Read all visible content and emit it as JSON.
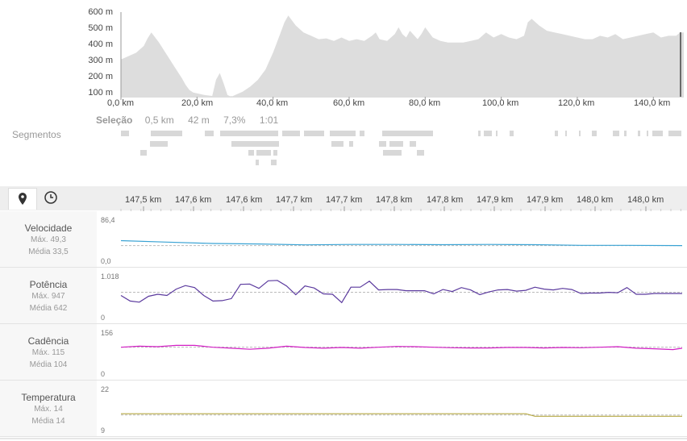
{
  "elevation": {
    "y_ticks": [
      "600 m",
      "500 m",
      "400 m",
      "300 m",
      "200 m",
      "100 m"
    ],
    "x_ticks": [
      "0,0 km",
      "20,0 km",
      "40,0 km",
      "60,0 km",
      "80,0 km",
      "100,0 km",
      "120,0 km",
      "140,0 km"
    ],
    "fill_color": "#dddddd"
  },
  "selection": {
    "label": "Seleção",
    "distance": "0,5 km",
    "elevation": "42 m",
    "grade": "7,3%",
    "time": "1:01"
  },
  "segments_label": "Segmentos",
  "tabs": {
    "map_icon": "map-pin-icon",
    "time_icon": "clock-icon"
  },
  "detail_x_ticks": [
    "147,5 km",
    "147,6 km",
    "147,6 km",
    "147,7 km",
    "147,7 km",
    "147,8 km",
    "147,8 km",
    "147,9 km",
    "147,9 km",
    "148,0 km",
    "148,0 km"
  ],
  "metrics": [
    {
      "title": "Velocidade",
      "max": "Máx. 49,3",
      "avg": "Média 33,5",
      "scale_top": "86,4",
      "scale_bottom": "0,0",
      "color": "#3aa3d4"
    },
    {
      "title": "Potência",
      "max": "Máx. 947",
      "avg": "Média 642",
      "scale_top": "1.018",
      "scale_bottom": "0",
      "color": "#5b3a9e"
    },
    {
      "title": "Cadência",
      "max": "Máx. 115",
      "avg": "Média 104",
      "scale_top": "156",
      "scale_bottom": "0",
      "color": "#d21fc4"
    },
    {
      "title": "Temperatura",
      "max": "Máx. 14",
      "avg": "Média 14",
      "scale_top": "22",
      "scale_bottom": "9",
      "color": "#b5a742"
    }
  ],
  "chart_data": [
    {
      "type": "area",
      "xlabel": "",
      "ylabel": "",
      "x_unit": "km",
      "y_unit": "m",
      "xlim": [
        0,
        148
      ],
      "ylim": [
        100,
        600
      ],
      "x": [
        0,
        2,
        4,
        6,
        7,
        8,
        10,
        12,
        14,
        16,
        17,
        18,
        19,
        20,
        22,
        24,
        25,
        26,
        27,
        28,
        29,
        30,
        32,
        34,
        36,
        38,
        40,
        41,
        42,
        43,
        44,
        46,
        48,
        50,
        52,
        54,
        56,
        58,
        60,
        62,
        64,
        66,
        67,
        68,
        70,
        72,
        73,
        74,
        75,
        76,
        78,
        79,
        80,
        82,
        84,
        86,
        88,
        90,
        92,
        94,
        96,
        98,
        100,
        102,
        104,
        106,
        107,
        108,
        110,
        112,
        114,
        116,
        118,
        120,
        122,
        124,
        126,
        128,
        130,
        132,
        134,
        136,
        138,
        140,
        142,
        144,
        146,
        147,
        148
      ],
      "y": [
        320,
        340,
        360,
        400,
        445,
        480,
        420,
        350,
        280,
        210,
        170,
        140,
        125,
        120,
        110,
        105,
        200,
        240,
        180,
        110,
        100,
        110,
        130,
        160,
        200,
        260,
        360,
        420,
        480,
        540,
        580,
        520,
        480,
        460,
        440,
        445,
        430,
        450,
        430,
        440,
        430,
        460,
        480,
        440,
        430,
        470,
        510,
        470,
        450,
        490,
        440,
        470,
        510,
        450,
        430,
        420,
        420,
        420,
        430,
        440,
        480,
        450,
        470,
        450,
        440,
        460,
        540,
        560,
        520,
        490,
        480,
        470,
        460,
        450,
        440,
        440,
        460,
        450,
        470,
        440,
        450,
        460,
        470,
        480,
        450,
        460,
        460,
        480,
        480
      ]
    },
    {
      "type": "line",
      "title": "Velocidade",
      "ylim": [
        0,
        86.4
      ],
      "average": 33.5,
      "x": [
        147.45,
        147.5,
        147.55,
        147.6,
        147.65,
        147.7,
        147.75,
        147.8,
        147.85,
        147.9,
        147.95,
        148.0,
        148.06
      ],
      "y": [
        44,
        41,
        38,
        37,
        35,
        36,
        36,
        35.5,
        36,
        35.5,
        34,
        34,
        33.5
      ]
    },
    {
      "type": "line",
      "title": "Potência",
      "ylim": [
        0,
        1018
      ],
      "average": 642,
      "x": [
        147.45,
        147.46,
        147.47,
        147.48,
        147.49,
        147.5,
        147.51,
        147.52,
        147.53,
        147.54,
        147.55,
        147.56,
        147.57,
        147.58,
        147.59,
        147.6,
        147.61,
        147.62,
        147.63,
        147.64,
        147.65,
        147.66,
        147.67,
        147.68,
        147.69,
        147.7,
        147.71,
        147.72,
        147.73,
        147.74,
        147.75,
        147.76,
        147.77,
        147.78,
        147.79,
        147.8,
        147.81,
        147.82,
        147.83,
        147.84,
        147.85,
        147.86,
        147.87,
        147.88,
        147.89,
        147.9,
        147.91,
        147.92,
        147.93,
        147.94,
        147.95,
        147.96,
        147.97,
        147.98,
        147.99,
        148.0,
        148.01,
        148.02,
        148.03,
        148.04,
        148.05,
        148.06
      ],
      "y": [
        560,
        420,
        390,
        540,
        590,
        560,
        720,
        810,
        760,
        560,
        420,
        430,
        480,
        840,
        850,
        740,
        930,
        940,
        800,
        580,
        800,
        750,
        600,
        590,
        380,
        770,
        770,
        920,
        700,
        710,
        710,
        680,
        680,
        680,
        600,
        710,
        660,
        760,
        700,
        580,
        650,
        700,
        710,
        670,
        690,
        770,
        720,
        700,
        740,
        710,
        610,
        620,
        620,
        640,
        630,
        760,
        590,
        590,
        610,
        610,
        610,
        610
      ]
    },
    {
      "type": "line",
      "title": "Cadência",
      "ylim": [
        0,
        156
      ],
      "average": 104,
      "x": [
        147.45,
        147.47,
        147.49,
        147.51,
        147.53,
        147.55,
        147.57,
        147.59,
        147.61,
        147.63,
        147.65,
        147.67,
        147.69,
        147.71,
        147.73,
        147.75,
        147.77,
        147.79,
        147.81,
        147.83,
        147.85,
        147.87,
        147.89,
        147.91,
        147.93,
        147.95,
        147.97,
        147.99,
        148.01,
        148.03,
        148.05,
        148.06
      ],
      "y": [
        104,
        108,
        106,
        111,
        111,
        104,
        100,
        96,
        100,
        108,
        103,
        100,
        103,
        100,
        104,
        107,
        106,
        104,
        102,
        101,
        101,
        103,
        103,
        101,
        103,
        102,
        104,
        106,
        100,
        98,
        95,
        100
      ]
    },
    {
      "type": "line",
      "title": "Temperatura",
      "ylim": [
        9,
        22
      ],
      "average": 14,
      "x": [
        147.45,
        147.6,
        147.75,
        147.89,
        147.9,
        148.0,
        148.06
      ],
      "y": [
        14.4,
        14.4,
        14.4,
        14.4,
        13.6,
        13.6,
        13.6
      ]
    }
  ]
}
